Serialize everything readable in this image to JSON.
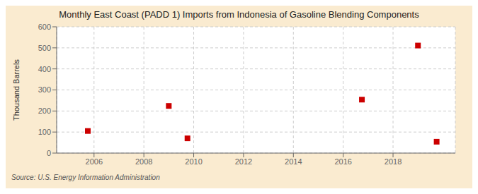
{
  "chart_data": {
    "type": "scatter",
    "title": "Monthly East Coast (PADD 1) Imports from Indonesia of Gasoline Blending Components",
    "ylabel": "Thousand Barrels",
    "annotations": [
      "Source: U.S. Energy Information Administration"
    ],
    "x": [
      2005.75,
      2009.0,
      2009.75,
      2016.75,
      2019.0,
      2019.75
    ],
    "values": [
      105,
      224,
      70,
      254,
      511,
      54
    ],
    "color": "#cc0000",
    "marker": "square",
    "xlim": [
      2004.5,
      2020.5
    ],
    "ylim": [
      0,
      600
    ],
    "xticks": [
      2006,
      2008,
      2010,
      2012,
      2014,
      2016,
      2018
    ],
    "yticks": [
      0,
      100,
      200,
      300,
      400,
      500,
      600
    ],
    "grid": true
  }
}
